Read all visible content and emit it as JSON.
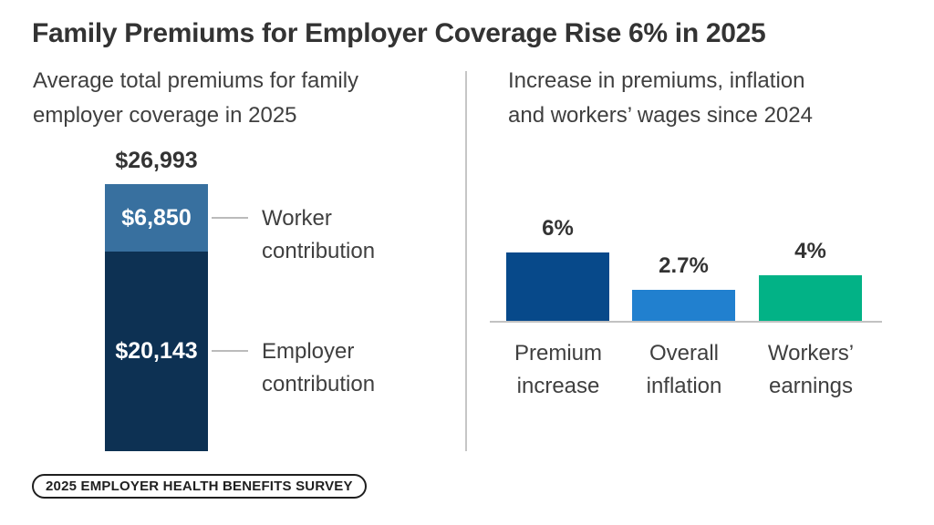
{
  "title": "Family Premiums for Employer Coverage Rise 6% in 2025",
  "panels": {
    "left": {
      "subtitle_lines": [
        "Average total premiums for family",
        "employer coverage in 2025"
      ]
    },
    "right": {
      "subtitle_lines": [
        "Increase in premiums, inflation",
        "and workers’ wages since 2024"
      ]
    }
  },
  "footer": {
    "badge_label": "2025 EMPLOYER HEALTH BENEFITS SURVEY"
  },
  "colors": {
    "title_text": "#333333",
    "body_text": "#3F3F3F",
    "divider_gray": "#C6C6C6",
    "axis_gray": "#C2C2C2",
    "connector_gray": "#BBBBBB",
    "badge_border": "#1F1F1F"
  },
  "chart_data": [
    {
      "type": "bar",
      "subtype": "single-stacked-column",
      "title": "Average total premiums for family employer coverage in 2025",
      "unit": "USD",
      "total": {
        "label": "$26,993",
        "value": 26993
      },
      "segments": [
        {
          "name": "Worker contribution",
          "label": "$6,850",
          "value": 6850,
          "color": "#38709F"
        },
        {
          "name": "Employer contribution",
          "label": "$20,143",
          "value": 20143,
          "color": "#0D3153"
        }
      ],
      "legend_position": "right-callouts"
    },
    {
      "type": "bar",
      "title": "Increase in premiums, inflation and workers’ wages since 2024",
      "unit": "percent",
      "categories": [
        "Premium increase",
        "Overall inflation",
        "Workers’ earnings"
      ],
      "values": [
        6,
        2.7,
        4
      ],
      "labels": [
        "6%",
        "2.7%",
        "4%"
      ],
      "colors": [
        "#07498A",
        "#2180CF",
        "#02B286"
      ],
      "ylim": [
        0,
        7
      ],
      "grid": false,
      "baseline_axis": true
    }
  ]
}
